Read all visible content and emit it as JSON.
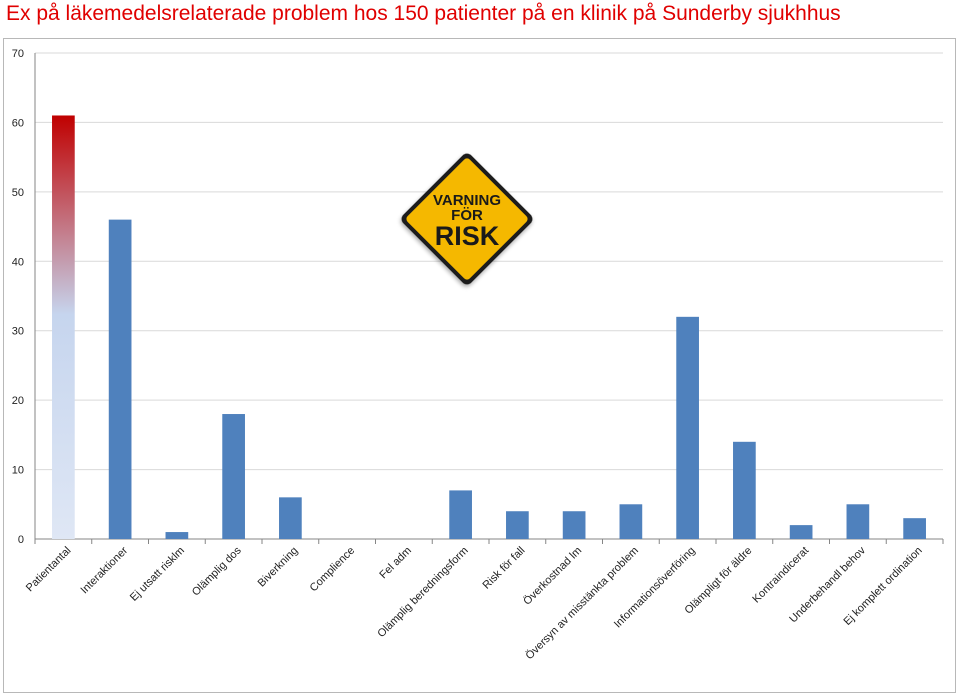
{
  "page": {
    "title": "Ex på läkemedelsrelaterade problem hos 150 patienter på en klinik på Sunderby sjukhhus",
    "title_color": "#e00000"
  },
  "warning_sign": {
    "line1": "VARNING",
    "line2": "FÖR",
    "line3": "RISK",
    "fill_color": "#f5b800",
    "text_color": "#1a1a1a"
  },
  "chart_data": {
    "type": "bar",
    "title": "",
    "xlabel": "",
    "ylabel": "",
    "ylim": [
      0,
      70
    ],
    "yticks": [
      0,
      10,
      20,
      30,
      40,
      50,
      60,
      70
    ],
    "grid": true,
    "legend": "none",
    "bar_color": "#4f81bd",
    "highlight": {
      "category": "Patientantal",
      "gradient": [
        "#c00000",
        "#c6d5ee",
        "#dfe7f5"
      ]
    },
    "categories": [
      "Patientantal",
      "Interaktioner",
      "Ej utsatt risklm",
      "Olämplig dos",
      "Biverkning",
      "Complience",
      "Fel adm",
      "Olämplig beredningsform",
      "Risk för fall",
      "Överkostnad lm",
      "Översyn av misstänkta problem",
      "Informationsöverföring",
      "Olämpligt för äldre",
      "Kontraindicerat",
      "Underbehandl behov",
      "Ej komplett ordination"
    ],
    "values": [
      61,
      46,
      1,
      18,
      6,
      0,
      0,
      7,
      4,
      4,
      5,
      32,
      14,
      2,
      5,
      3
    ]
  }
}
